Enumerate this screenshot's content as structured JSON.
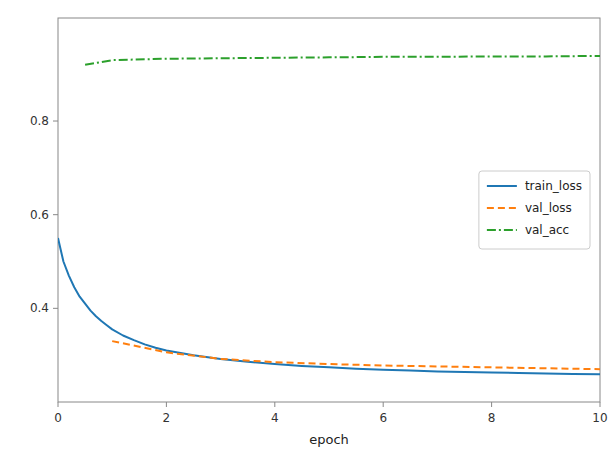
{
  "chart_data": {
    "type": "line",
    "x_label": "epoch",
    "xlim": [
      0,
      10
    ],
    "ylim": [
      0.2,
      1.02
    ],
    "xticks": [
      0,
      2,
      4,
      6,
      8,
      10
    ],
    "yticks": [
      0.4,
      0.6,
      0.8
    ],
    "grid": false,
    "legend": "center right",
    "series": [
      {
        "name": "train_loss",
        "color": "#1f77b4",
        "line_style": "solid",
        "x": [
          0.0,
          0.1,
          0.2,
          0.3,
          0.4,
          0.5,
          0.6,
          0.7,
          0.8,
          0.9,
          1.0,
          1.2,
          1.4,
          1.6,
          1.8,
          2.0,
          2.5,
          3.0,
          3.5,
          4.0,
          4.5,
          5.0,
          5.5,
          6.0,
          6.5,
          7.0,
          7.5,
          8.0,
          8.5,
          9.0,
          9.5,
          10.0
        ],
        "values": [
          0.55,
          0.5,
          0.47,
          0.445,
          0.425,
          0.41,
          0.395,
          0.383,
          0.373,
          0.364,
          0.355,
          0.342,
          0.332,
          0.323,
          0.316,
          0.31,
          0.3,
          0.292,
          0.286,
          0.281,
          0.277,
          0.274,
          0.271,
          0.269,
          0.267,
          0.265,
          0.264,
          0.263,
          0.262,
          0.261,
          0.26,
          0.259
        ]
      },
      {
        "name": "val_loss",
        "color": "#ff7f0e",
        "line_style": "dashed",
        "x": [
          1.0,
          2.0,
          3.0,
          4.0,
          5.0,
          6.0,
          7.0,
          8.0,
          9.0,
          10.0
        ],
        "values": [
          0.33,
          0.306,
          0.292,
          0.285,
          0.281,
          0.278,
          0.276,
          0.274,
          0.272,
          0.27
        ]
      },
      {
        "name": "val_acc",
        "color": "#2ca02c",
        "line_style": "dashdot",
        "x": [
          0.5,
          1.0,
          2.0,
          3.0,
          4.0,
          5.0,
          6.0,
          7.0,
          8.0,
          9.0,
          10.0
        ],
        "values": [
          0.92,
          0.93,
          0.933,
          0.934,
          0.935,
          0.936,
          0.937,
          0.937,
          0.938,
          0.938,
          0.939
        ]
      }
    ]
  }
}
